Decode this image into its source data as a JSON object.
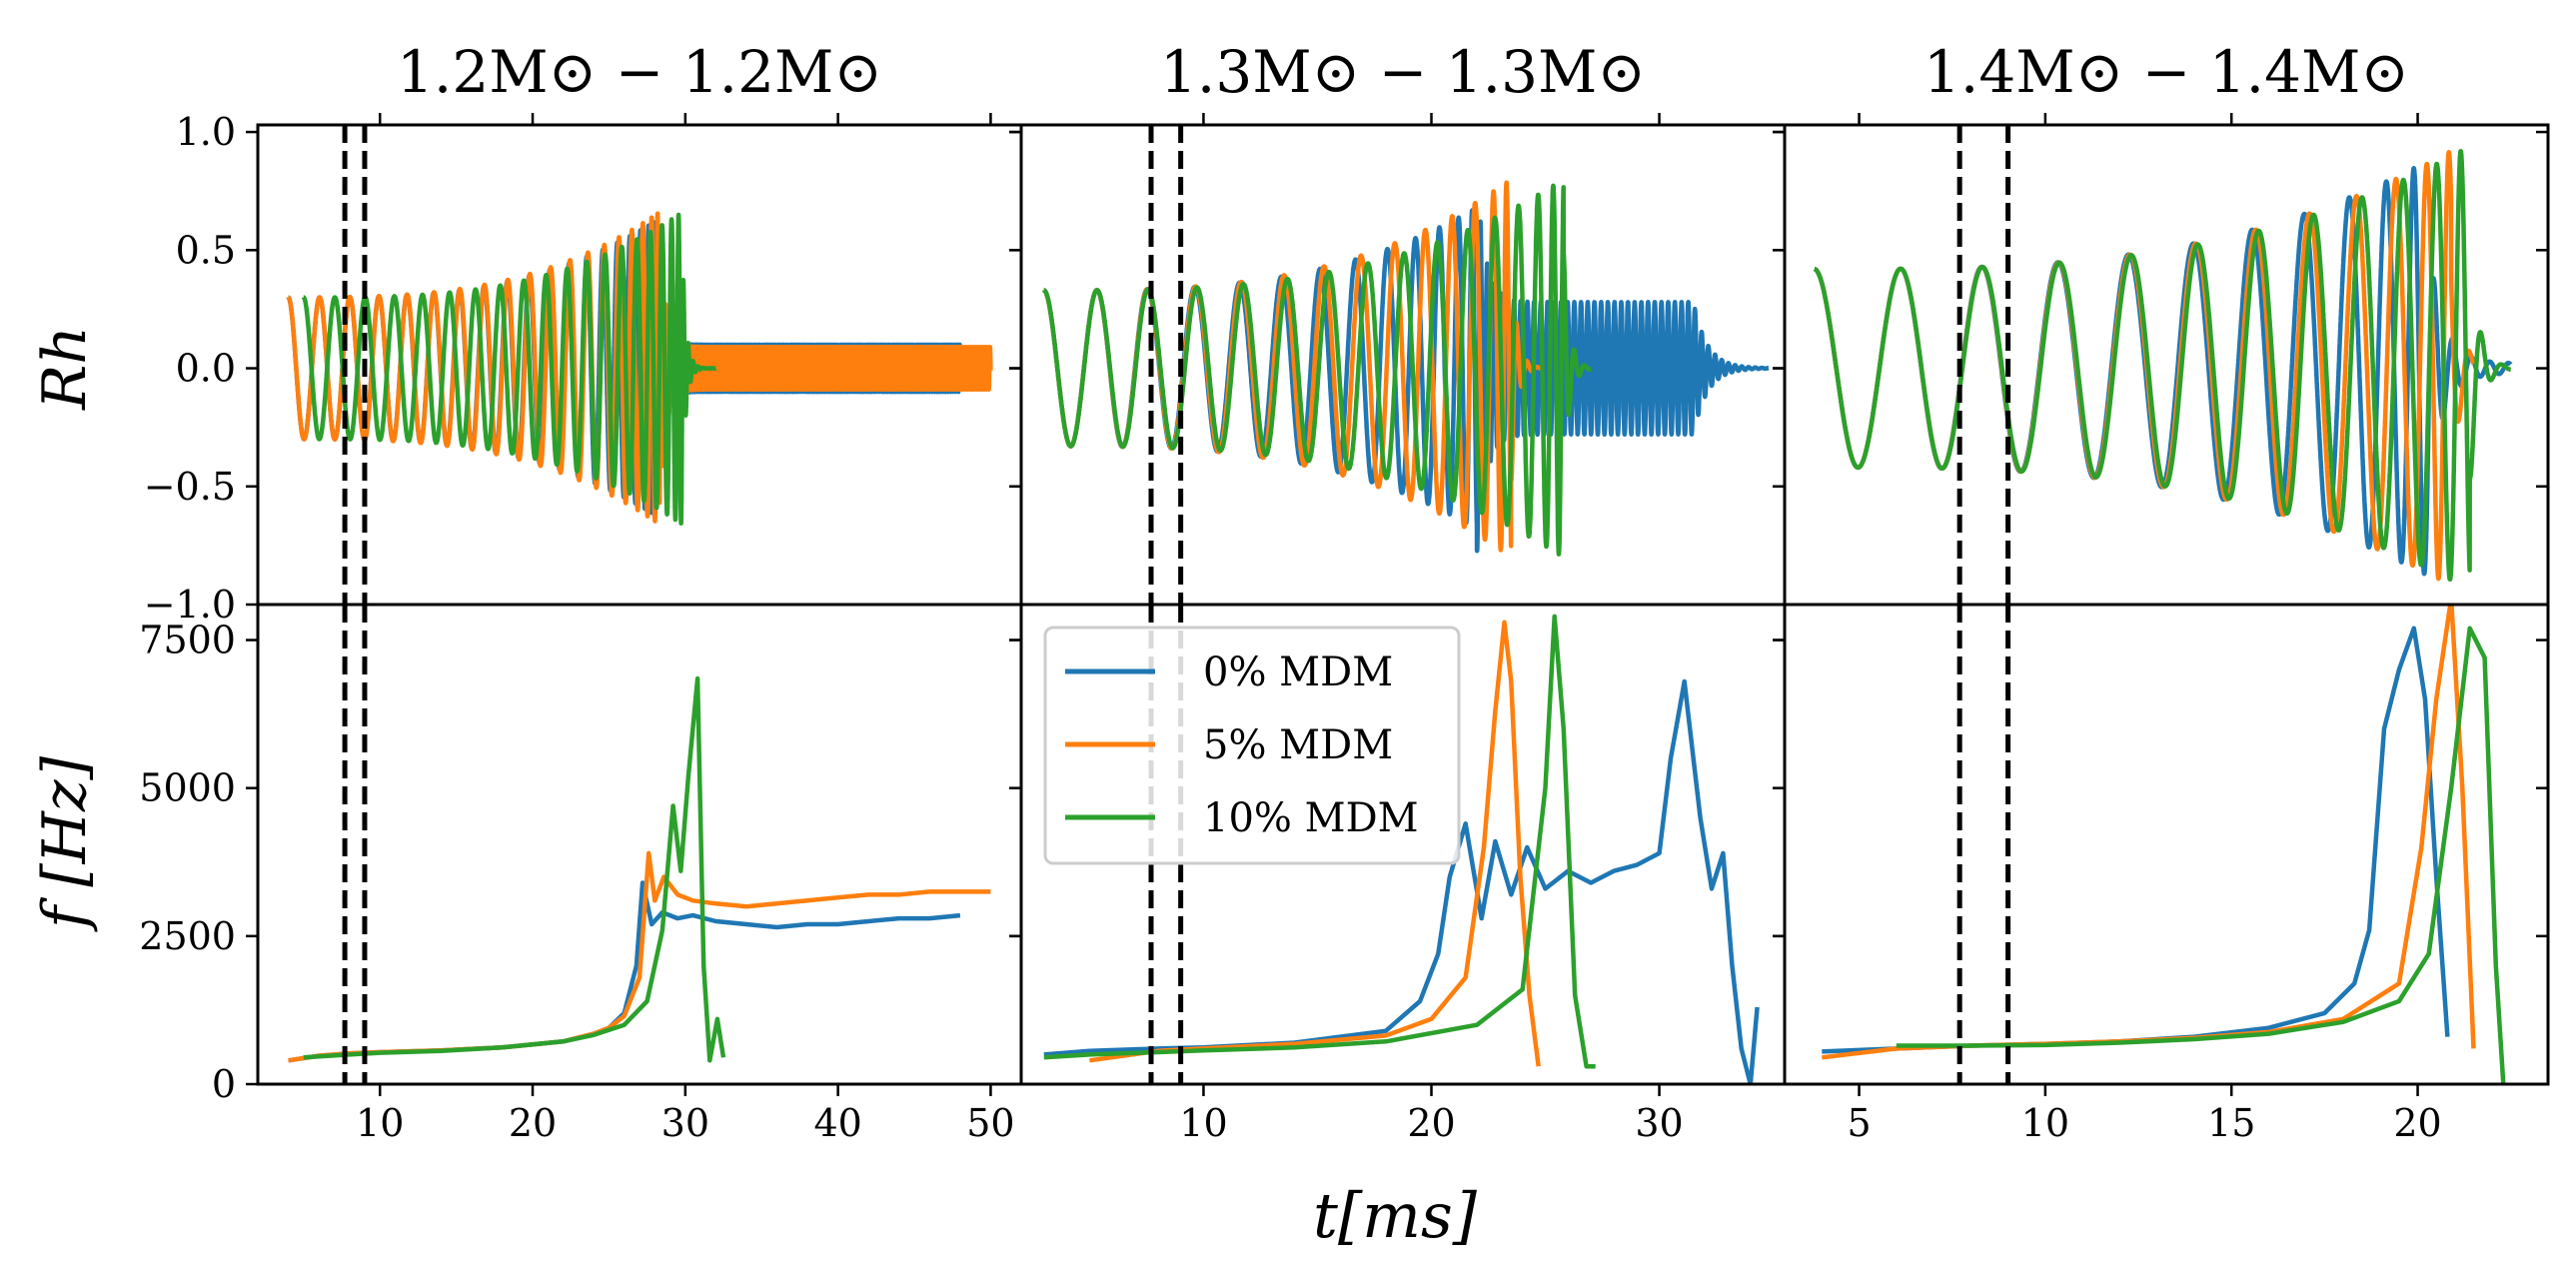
{
  "figure": {
    "xlabel": "t[ms]",
    "ylabel_top": "Rh",
    "ylabel_bottom": "f [Hz]"
  },
  "legend": {
    "entries": [
      {
        "label": "0% MDM",
        "color": "#1f77b4"
      },
      {
        "label": "5% MDM",
        "color": "#ff7f0e"
      },
      {
        "label": "10% MDM",
        "color": "#2ca02c"
      }
    ],
    "placement": "upper-left of middle bottom panel"
  },
  "colors": {
    "s0": "#1f77b4",
    "s5": "#ff7f0e",
    "s10": "#2ca02c",
    "axes": "#000000",
    "vline": "#000000"
  },
  "chart_data": [
    {
      "type": "line",
      "title": "1.2M⊙ − 1.2M⊙",
      "xlim": [
        2,
        52
      ],
      "xticks": [
        10,
        20,
        30,
        40,
        50
      ],
      "ylim_top": [
        -1.0,
        1.03
      ],
      "yticks_top": [
        "1.0",
        "0.5",
        "0.0",
        "−0.5",
        "−1.0"
      ],
      "ylim_bottom": [
        0,
        8100
      ],
      "yticks_bottom": [
        "7500",
        "5000",
        "2500",
        "0"
      ],
      "vlines": [
        7.7,
        9.0
      ],
      "strain": {
        "series": [
          {
            "name": "0% MDM",
            "start": 4.0,
            "merger": 28.0,
            "end": 48.0,
            "f0": 0.48,
            "f_merge": 3.2,
            "a0": 0.3,
            "a_merge": 0.62,
            "pm_amp": 0.1,
            "pm_freq": 5.8
          },
          {
            "name": "5% MDM",
            "start": 4.0,
            "merger": 28.3,
            "end": 50.0,
            "f0": 0.48,
            "f_merge": 3.2,
            "a0": 0.3,
            "a_merge": 0.66,
            "pm_amp": 0.09,
            "pm_freq": 6.4
          },
          {
            "name": "10% MDM",
            "start": 5.0,
            "merger": 29.8,
            "end": 32.0,
            "f0": 0.48,
            "f_merge": 3.2,
            "a0": 0.3,
            "a_merge": 0.66,
            "pm_amp": 0.0,
            "pm_freq": 0
          }
        ]
      },
      "frequency": {
        "series": [
          {
            "name": "0% MDM",
            "x": [
              4,
              6,
              8,
              10,
              14,
              18,
              22,
              24,
              25,
              26,
              26.8,
              27.2,
              27.8,
              28.5,
              29.5,
              30.5,
              32,
              34,
              36,
              38,
              40,
              42,
              44,
              46,
              48
            ],
            "y": [
              400,
              480,
              520,
              540,
              570,
              620,
              720,
              850,
              950,
              1200,
              2000,
              3400,
              2700,
              2900,
              2800,
              2850,
              2750,
              2700,
              2650,
              2700,
              2700,
              2750,
              2800,
              2800,
              2850
            ]
          },
          {
            "name": "5% MDM",
            "x": [
              4,
              6,
              8,
              10,
              14,
              18,
              22,
              24,
              25,
              26,
              27,
              27.6,
              28.0,
              28.6,
              29.5,
              30.5,
              32,
              34,
              36,
              38,
              40,
              42,
              44,
              46,
              48,
              50
            ],
            "y": [
              400,
              480,
              520,
              540,
              570,
              620,
              720,
              850,
              950,
              1150,
              1800,
              3900,
              3100,
              3500,
              3200,
              3100,
              3050,
              3000,
              3050,
              3100,
              3150,
              3200,
              3200,
              3250,
              3250,
              3250
            ]
          },
          {
            "name": "10% MDM",
            "x": [
              5,
              8,
              10,
              14,
              18,
              22,
              24,
              26,
              27.5,
              28.5,
              29.2,
              29.7,
              30.2,
              30.8,
              31.2,
              31.6,
              32.1,
              32.5
            ],
            "y": [
              450,
              500,
              530,
              560,
              620,
              720,
              830,
              1000,
              1400,
              2600,
              4700,
              3600,
              5200,
              6850,
              2000,
              400,
              1100,
              450
            ]
          }
        ]
      }
    },
    {
      "type": "line",
      "title": "1.3M⊙ − 1.3M⊙",
      "xlim": [
        2,
        35.5
      ],
      "xticks": [
        10,
        20,
        30
      ],
      "ylim_top": [
        -1.0,
        1.03
      ],
      "ylim_bottom": [
        0,
        8100
      ],
      "vlines": [
        7.7,
        9.0
      ],
      "strain": {
        "series": [
          {
            "name": "0% MDM",
            "start": 3.0,
            "merger": 22.0,
            "end": 34.8,
            "f0": 0.42,
            "f_merge": 2.2,
            "a0": 0.33,
            "a_merge": 0.68,
            "pm_amp": 0.28,
            "pm_freq": 3.4,
            "pm_decay_start": 31.5
          },
          {
            "name": "5% MDM",
            "start": 3.0,
            "merger": 23.5,
            "end": 24.8,
            "f0": 0.42,
            "f_merge": 2.2,
            "a0": 0.33,
            "a_merge": 0.8,
            "pm_amp": 0.0,
            "pm_freq": 0
          },
          {
            "name": "10% MDM",
            "start": 3.0,
            "merger": 25.8,
            "end": 27.0,
            "f0": 0.42,
            "f_merge": 2.2,
            "a0": 0.33,
            "a_merge": 0.8,
            "pm_amp": 0.0,
            "pm_freq": 0
          }
        ]
      },
      "frequency": {
        "series": [
          {
            "name": "0% MDM",
            "x": [
              3,
              5,
              8,
              10,
              14,
              18,
              19.5,
              20.3,
              20.8,
              21.5,
              22.2,
              22.8,
              23.5,
              24.2,
              25,
              26,
              27,
              28,
              29,
              30,
              30.5,
              31.1,
              31.8,
              32.3,
              32.8,
              33.2,
              33.6,
              34.0,
              34.3
            ],
            "y": [
              500,
              560,
              600,
              620,
              700,
              900,
              1400,
              2200,
              3500,
              4400,
              2800,
              4100,
              3200,
              4000,
              3300,
              3600,
              3400,
              3600,
              3700,
              3900,
              5500,
              6800,
              4500,
              3300,
              3900,
              2000,
              600,
              0,
              1300
            ]
          },
          {
            "name": "5% MDM",
            "x": [
              5,
              8,
              10,
              14,
              18,
              20,
              21.5,
              22.3,
              22.8,
              23.2,
              23.5,
              23.9,
              24.3,
              24.7
            ],
            "y": [
              400,
              560,
              600,
              680,
              820,
              1100,
              1800,
              4000,
              6300,
              7800,
              6800,
              3500,
              1500,
              300
            ]
          },
          {
            "name": "10% MDM",
            "x": [
              3,
              5,
              8,
              10,
              14,
              18,
              22,
              24,
              25,
              25.4,
              25.8,
              26.3,
              26.8,
              27.2
            ],
            "y": [
              450,
              500,
              540,
              570,
              620,
              720,
              1000,
              1600,
              5000,
              7900,
              6000,
              1500,
              300,
              300
            ]
          }
        ]
      }
    },
    {
      "type": "line",
      "title": "1.4M⊙ − 1.4M⊙",
      "xlim": [
        3,
        23.5
      ],
      "xticks": [
        5,
        10,
        15,
        20
      ],
      "ylim_top": [
        -1.0,
        1.03
      ],
      "ylim_bottom": [
        0,
        8100
      ],
      "vlines": [
        7.7,
        9.0
      ],
      "strain": {
        "series": [
          {
            "name": "0% MDM",
            "start": 3.8,
            "merger": 20.3,
            "end": 22.5,
            "f0": 0.42,
            "f_merge": 1.8,
            "a0": 0.42,
            "a_merge": 0.88,
            "pm_amp": 0.02,
            "pm_freq": 2.0
          },
          {
            "name": "5% MDM",
            "start": 3.8,
            "merger": 20.9,
            "end": 21.5,
            "f0": 0.42,
            "f_merge": 1.8,
            "a0": 0.42,
            "a_merge": 0.92,
            "pm_amp": 0.0,
            "pm_freq": 0
          },
          {
            "name": "10% MDM",
            "start": 3.8,
            "merger": 21.4,
            "end": 22.5,
            "f0": 0.42,
            "f_merge": 1.8,
            "a0": 0.42,
            "a_merge": 0.94,
            "pm_amp": 0.0,
            "pm_freq": 0
          }
        ]
      },
      "frequency": {
        "series": [
          {
            "name": "0% MDM",
            "x": [
              4,
              6,
              8,
              10,
              12,
              14,
              16,
              17.5,
              18.3,
              18.7,
              19.1,
              19.5,
              19.9,
              20.2,
              20.5,
              20.8
            ],
            "y": [
              550,
              600,
              650,
              680,
              720,
              800,
              950,
              1200,
              1700,
              2600,
              6000,
              7000,
              7700,
              6500,
              3500,
              800
            ]
          },
          {
            "name": "5% MDM",
            "x": [
              4,
              6,
              8,
              10,
              12,
              14,
              16,
              18,
              19.5,
              20.1,
              20.5,
              20.9,
              21.2,
              21.5
            ],
            "y": [
              450,
              600,
              650,
              680,
              720,
              780,
              880,
              1100,
              1700,
              4000,
              6500,
              8200,
              5000,
              600
            ]
          },
          {
            "name": "10% MDM",
            "x": [
              6,
              8,
              10,
              12,
              14,
              16,
              18,
              19.5,
              20.3,
              20.9,
              21.4,
              21.8,
              22.1,
              22.3
            ],
            "y": [
              650,
              650,
              660,
              700,
              760,
              850,
              1050,
              1400,
              2200,
              5000,
              7700,
              7200,
              2000,
              0
            ]
          }
        ]
      }
    }
  ]
}
